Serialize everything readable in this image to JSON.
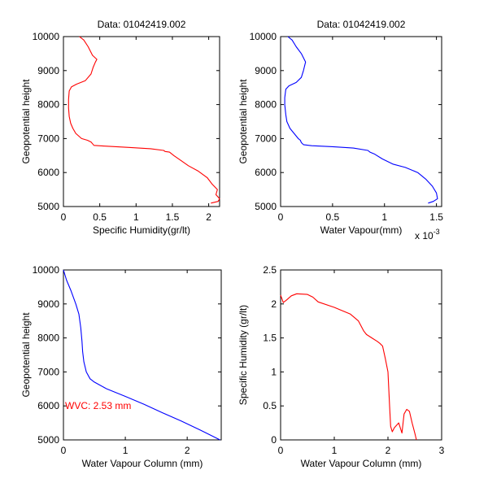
{
  "figure": {
    "background": "#ffffff",
    "line_colors": {
      "red": "#ff0000",
      "blue": "#0000ff"
    }
  },
  "chart_data": [
    {
      "type": "line",
      "title": "Data: 01042419.002",
      "xlabel": "Specific Humidity(gr/lt)",
      "ylabel": "Geopotential height",
      "xlim": [
        0,
        2.15
      ],
      "ylim": [
        5000,
        10000
      ],
      "xticks": [
        0,
        0.5,
        1,
        1.5,
        2
      ],
      "xtick_labels": [
        "0",
        "0.5",
        "1",
        "1.5",
        "2"
      ],
      "yticks": [
        5000,
        6000,
        7000,
        8000,
        9000,
        10000
      ],
      "ytick_labels": [
        "5000",
        "6000",
        "7000",
        "8000",
        "9000",
        "10000"
      ],
      "grid": false,
      "series": [
        {
          "color": "#ff0000",
          "x": [
            2.03,
            2.13,
            2.15,
            2.1,
            2.12,
            2.05,
            1.98,
            1.85,
            1.72,
            1.62,
            1.52,
            1.46,
            1.4,
            1.38,
            1.2,
            0.9,
            0.55,
            0.42,
            0.4,
            0.38,
            0.33,
            0.25,
            0.17,
            0.13,
            0.1,
            0.08,
            0.07,
            0.07,
            0.08,
            0.11,
            0.18,
            0.3,
            0.38,
            0.41,
            0.44,
            0.46,
            0.4,
            0.34,
            0.28,
            0.22
          ],
          "y": [
            5100,
            5150,
            5230,
            5350,
            5500,
            5650,
            5850,
            6050,
            6200,
            6350,
            6500,
            6600,
            6620,
            6650,
            6700,
            6740,
            6780,
            6800,
            6850,
            6900,
            6950,
            7000,
            7150,
            7300,
            7450,
            7650,
            7900,
            8150,
            8400,
            8520,
            8600,
            8700,
            8900,
            9100,
            9250,
            9330,
            9450,
            9700,
            9900,
            10000
          ]
        }
      ]
    },
    {
      "type": "line",
      "title": "Data: 01042419.002",
      "xlabel": "Water Vapour(mm)",
      "ylabel": "Geopotential height",
      "x_exponent": "x 10",
      "x_exponent_power": "-3",
      "xlim": [
        0,
        1.55
      ],
      "ylim": [
        5000,
        10000
      ],
      "xticks": [
        0,
        0.5,
        1,
        1.5
      ],
      "xtick_labels": [
        "0",
        "0.5",
        "1",
        "1.5"
      ],
      "yticks": [
        5000,
        6000,
        7000,
        8000,
        9000,
        10000
      ],
      "ytick_labels": [
        "5000",
        "6000",
        "7000",
        "8000",
        "9000",
        "10000"
      ],
      "grid": false,
      "series": [
        {
          "color": "#0000ff",
          "x": [
            1.42,
            1.47,
            1.51,
            1.5,
            1.46,
            1.4,
            1.32,
            1.2,
            1.08,
            0.98,
            0.9,
            0.86,
            0.84,
            0.7,
            0.5,
            0.3,
            0.22,
            0.2,
            0.19,
            0.17,
            0.13,
            0.09,
            0.06,
            0.05,
            0.04,
            0.04,
            0.05,
            0.08,
            0.15,
            0.2,
            0.22,
            0.24,
            0.2,
            0.15,
            0.11,
            0.07
          ],
          "y": [
            5100,
            5150,
            5230,
            5400,
            5600,
            5800,
            6000,
            6150,
            6250,
            6400,
            6550,
            6600,
            6650,
            6720,
            6760,
            6790,
            6820,
            6880,
            6950,
            7000,
            7150,
            7300,
            7500,
            7700,
            8000,
            8200,
            8450,
            8550,
            8650,
            8800,
            9000,
            9250,
            9500,
            9700,
            9900,
            10000
          ]
        }
      ]
    },
    {
      "type": "line",
      "title": "",
      "xlabel": "Water Vapour Column (mm)",
      "ylabel": "Geopotential height",
      "annotation": "WVC: 2.53 mm",
      "annotation_color": "#ff0000",
      "xlim": [
        0,
        2.55
      ],
      "ylim": [
        5000,
        10000
      ],
      "xticks": [
        0,
        1,
        2
      ],
      "xtick_labels": [
        "0",
        "1",
        "2"
      ],
      "yticks": [
        5000,
        6000,
        7000,
        8000,
        9000,
        10000
      ],
      "ytick_labels": [
        "5000",
        "6000",
        "7000",
        "8000",
        "9000",
        "10000"
      ],
      "grid": false,
      "series": [
        {
          "color": "#0000ff",
          "x": [
            0.0,
            0.05,
            0.12,
            0.2,
            0.25,
            0.28,
            0.3,
            0.31,
            0.33,
            0.37,
            0.43,
            0.5,
            0.7,
            1.0,
            1.3,
            1.6,
            1.9,
            2.2,
            2.53
          ],
          "y": [
            10000,
            9700,
            9400,
            9000,
            8700,
            8300,
            7900,
            7600,
            7300,
            7000,
            6800,
            6700,
            6500,
            6280,
            6050,
            5800,
            5560,
            5300,
            5000
          ]
        }
      ]
    },
    {
      "type": "line",
      "title": "",
      "xlabel": "Water Vapour Column (mm)",
      "ylabel": "Specific Humidity (gr/lt)",
      "xlim": [
        0,
        3
      ],
      "ylim": [
        0,
        2.5
      ],
      "xticks": [
        0,
        1,
        2,
        3
      ],
      "xtick_labels": [
        "0",
        "1",
        "2",
        "3"
      ],
      "yticks": [
        0,
        0.5,
        1,
        1.5,
        2,
        2.5
      ],
      "ytick_labels": [
        "0",
        "0.5",
        "1",
        "1.5",
        "2",
        "2.5"
      ],
      "grid": false,
      "series": [
        {
          "color": "#ff0000",
          "x": [
            0.0,
            0.05,
            0.1,
            0.2,
            0.3,
            0.5,
            0.6,
            0.7,
            1.0,
            1.3,
            1.45,
            1.55,
            1.6,
            1.7,
            1.8,
            1.85,
            1.9,
            1.95,
            2.0,
            2.03,
            2.05,
            2.08,
            2.12,
            2.2,
            2.26,
            2.3,
            2.35,
            2.4,
            2.45,
            2.5,
            2.53
          ],
          "y": [
            2.13,
            2.02,
            2.05,
            2.12,
            2.15,
            2.14,
            2.1,
            2.03,
            1.95,
            1.85,
            1.75,
            1.6,
            1.55,
            1.5,
            1.45,
            1.42,
            1.38,
            1.2,
            1.0,
            0.5,
            0.2,
            0.12,
            0.18,
            0.25,
            0.1,
            0.38,
            0.45,
            0.42,
            0.25,
            0.1,
            0.0
          ]
        }
      ]
    }
  ]
}
